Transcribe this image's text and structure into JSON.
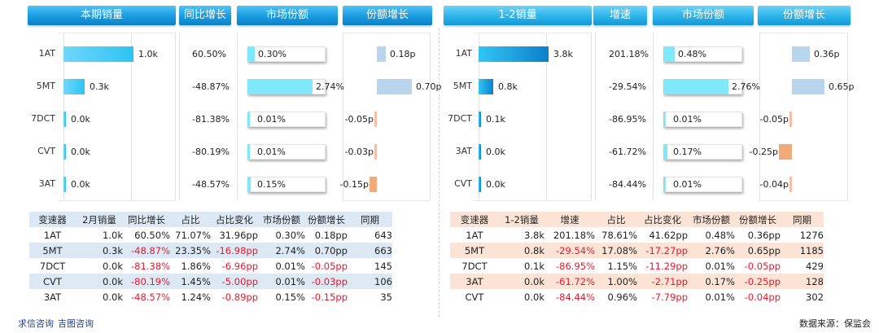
{
  "chart_data": [
    {
      "type": "bar",
      "period": "本期",
      "headers": [
        "本期销量",
        "同比增长",
        "市场份额",
        "份额增长"
      ],
      "categories": [
        "1AT",
        "5MT",
        "7DCT",
        "CVT",
        "3AT"
      ],
      "sales": [
        1.0,
        0.3,
        0.0,
        0.0,
        0.0
      ],
      "sales_labels": [
        "1.0k",
        "0.3k",
        "0.0k",
        "0.0k",
        "0.0k"
      ],
      "yoy_labels": [
        "60.50%",
        "-48.87%",
        "-81.38%",
        "-80.19%",
        "-48.57%"
      ],
      "share": [
        0.3,
        2.74,
        0.01,
        0.01,
        0.15
      ],
      "share_labels": [
        "0.30%",
        "2.74%",
        "0.01%",
        "0.01%",
        "0.15%"
      ],
      "share_growth": [
        0.18,
        0.7,
        -0.05,
        -0.03,
        -0.15
      ],
      "share_growth_labels": [
        "0.18p",
        "0.70p",
        "-0.05p",
        "-0.03p",
        "-0.15p"
      ]
    },
    {
      "type": "bar",
      "period": "1-2",
      "headers": [
        "1-2销量",
        "增速",
        "市场份额",
        "份额增长"
      ],
      "categories": [
        "1AT",
        "5MT",
        "7DCT",
        "3AT",
        "CVT"
      ],
      "sales": [
        3.8,
        0.8,
        0.1,
        0.0,
        0.0
      ],
      "sales_labels": [
        "3.8k",
        "0.8k",
        "0.1k",
        "0.0k",
        "0.0k"
      ],
      "yoy_labels": [
        "201.18%",
        "-29.54%",
        "-86.95%",
        "-61.72%",
        "-84.44%"
      ],
      "share": [
        0.48,
        2.76,
        0.01,
        0.17,
        0.01
      ],
      "share_labels": [
        "0.48%",
        "2.76%",
        "0.01%",
        "0.17%",
        "0.01%"
      ],
      "share_growth": [
        0.36,
        0.65,
        -0.05,
        -0.25,
        -0.04
      ],
      "share_growth_labels": [
        "0.36p",
        "0.65p",
        "-0.05p",
        "-0.25p",
        "-0.04p"
      ]
    }
  ],
  "tables": {
    "left": {
      "headers": [
        "变速器",
        "2月销量",
        "同比增长",
        "占比",
        "占比变化",
        "市场份额",
        "份额增长",
        "同期"
      ],
      "rows": [
        [
          "1AT",
          "1.0k",
          "60.50%",
          "71.07%",
          "31.96pp",
          "0.30%",
          "0.18pp",
          "643"
        ],
        [
          "5MT",
          "0.3k",
          "-48.87%",
          "23.35%",
          "-16.98pp",
          "2.74%",
          "0.70pp",
          "663"
        ],
        [
          "7DCT",
          "0.0k",
          "-81.38%",
          "1.86%",
          "-6.96pp",
          "0.01%",
          "-0.05pp",
          "145"
        ],
        [
          "CVT",
          "0.0k",
          "-80.19%",
          "1.45%",
          "-5.00pp",
          "0.01%",
          "-0.03pp",
          "106"
        ],
        [
          "3AT",
          "0.0k",
          "-48.57%",
          "1.24%",
          "-0.89pp",
          "0.15%",
          "-0.15pp",
          "35"
        ]
      ]
    },
    "right": {
      "headers": [
        "变速器",
        "1-2销量",
        "增速",
        "占比",
        "占比变化",
        "市场份额",
        "份额增长",
        "同期"
      ],
      "rows": [
        [
          "1AT",
          "3.8k",
          "201.18%",
          "78.61%",
          "41.62pp",
          "0.48%",
          "0.36pp",
          "1276"
        ],
        [
          "5MT",
          "0.8k",
          "-29.54%",
          "17.08%",
          "-17.27pp",
          "2.76%",
          "0.65pp",
          "1185"
        ],
        [
          "7DCT",
          "0.1k",
          "-86.95%",
          "1.15%",
          "-11.29pp",
          "0.01%",
          "-0.05pp",
          "429"
        ],
        [
          "3AT",
          "0.0k",
          "-61.72%",
          "1.00%",
          "-2.71pp",
          "0.17%",
          "-0.25pp",
          "128"
        ],
        [
          "CVT",
          "0.0k",
          "-84.44%",
          "0.96%",
          "-7.79pp",
          "0.01%",
          "-0.04pp",
          "302"
        ]
      ]
    }
  },
  "colors": {
    "left_row_band": "#dce9f5",
    "right_row_band": "#fbe3d6",
    "negative": "#e8192c",
    "link": "#1a3fa0"
  },
  "footer": {
    "links": [
      "求信咨询",
      "吉图咨询"
    ],
    "source": "数据来源：保监会"
  }
}
